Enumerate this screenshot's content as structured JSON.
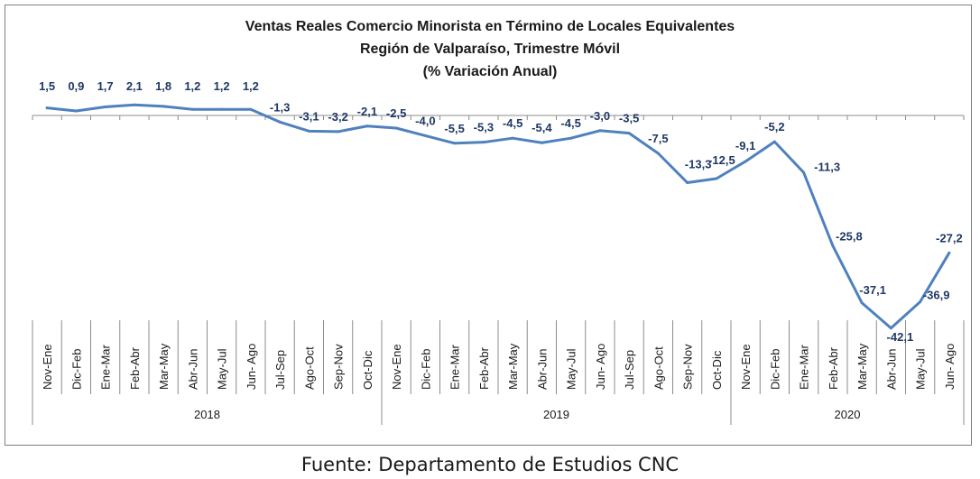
{
  "chart_data": {
    "type": "line",
    "title": "Ventas Reales Comercio Minorista  en Término de Locales Equivalentes",
    "subtitle": "Región de Valparaíso, Trimestre Móvil",
    "subtitle2": "(% Variación Anual)",
    "categories": [
      "Nov-Ene",
      "Dic-Feb",
      "Ene-Mar",
      "Feb-Abr",
      "Mar-May",
      "Abr-Jun",
      "May-Jul",
      "Jun- Ago",
      "Jul-Sep",
      "Ago-Oct",
      "Sep-Nov",
      "Oct-Dic",
      "Nov-Ene",
      "Dic-Feb",
      "Ene-Mar",
      "Feb-Abr",
      "Mar-May",
      "Abr-Jun",
      "May-Jul",
      "Jun- Ago",
      "Jul-Sep",
      "Ago-Oct",
      "Sep-Nov",
      "Oct-Dic",
      "Nov-Ene",
      "Dic-Feb",
      "Ene-Mar",
      "Feb-Abr",
      "Mar-May",
      "Abr-Jun",
      "May-Jul",
      "Jun- Ago"
    ],
    "groups": [
      {
        "label": "2018",
        "count": 12
      },
      {
        "label": "2019",
        "count": 12
      },
      {
        "label": "2020",
        "count": 8
      }
    ],
    "series": [
      {
        "values": [
          1.5,
          0.9,
          1.7,
          2.1,
          1.8,
          1.2,
          1.2,
          1.2,
          -1.3,
          -3.1,
          -3.2,
          -2.1,
          -2.5,
          -4.0,
          -5.5,
          -5.3,
          -4.5,
          -5.4,
          -4.5,
          -3.0,
          -3.5,
          -7.5,
          -13.3,
          -12.5,
          -9.1,
          -5.2,
          -11.3,
          -25.8,
          -37.1,
          -42.1,
          -36.9,
          -27.2
        ],
        "labels": [
          "1,5",
          "0,9",
          "1,7",
          "2,1",
          "1,8",
          "1,2",
          "1,2",
          "1,2",
          "-1,3",
          "-3,1",
          "-3,2",
          "-2,1",
          "-2,5",
          "-4,0",
          "-5,5",
          "-5,3",
          "-4,5",
          "-5,4",
          "-4,5",
          "-3,0",
          "-3,5",
          "-7,5",
          "-13,3",
          "-12,5",
          "-9,1",
          "-5,2",
          "-11,3",
          "-25,8",
          "-37,1",
          "-42,1",
          "-36,9",
          "-27,2"
        ]
      }
    ],
    "ylim": [
      -44,
      3
    ],
    "line_color": "#4f81bd",
    "label_color": "#1f3864",
    "grid": false
  },
  "source": "Fuente: Departamento de Estudios CNC"
}
